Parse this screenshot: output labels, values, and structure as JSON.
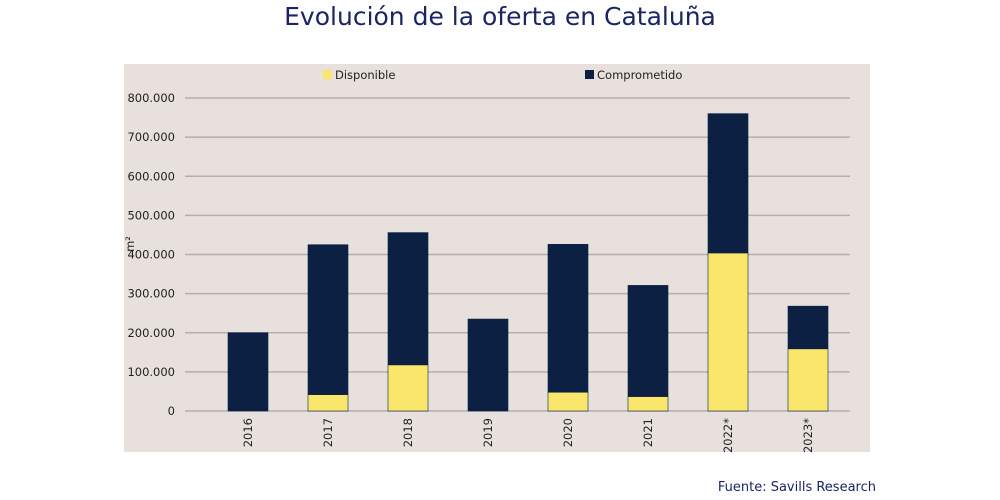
{
  "title": "Evolución de la oferta en Cataluña",
  "source": "Fuente: Savills Research",
  "chart_data": {
    "type": "bar",
    "stacked": true,
    "title": "Evolución de la oferta en Cataluña",
    "xlabel": "",
    "ylabel": "m²",
    "ylim": [
      0,
      800000
    ],
    "yticks": [
      0,
      100000,
      200000,
      300000,
      400000,
      500000,
      600000,
      700000,
      800000
    ],
    "ytick_labels": [
      "0",
      "100.000",
      "200.000",
      "300.000",
      "400.000",
      "500.000",
      "600.000",
      "700.000",
      "800.000"
    ],
    "grid": true,
    "legend": "top",
    "categories": [
      "2016",
      "2017",
      "2018",
      "2019",
      "2020",
      "2021",
      "2022*",
      "2023*"
    ],
    "series": [
      {
        "name": "Disponible",
        "color": "#f9e66b",
        "values": [
          0,
          42000,
          118000,
          0,
          48000,
          37000,
          404000,
          159000
        ]
      },
      {
        "name": "Comprometido",
        "color": "#0b2042",
        "values": [
          200000,
          383000,
          338000,
          235000,
          378000,
          284000,
          356000,
          109000
        ]
      }
    ],
    "background": "#e7e0dc"
  }
}
